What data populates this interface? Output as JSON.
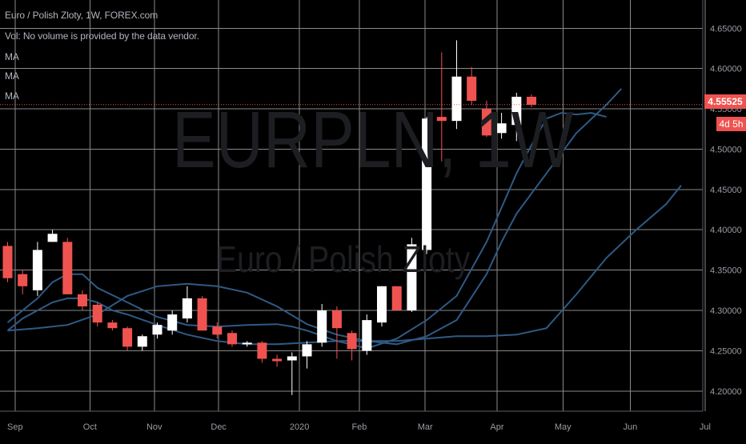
{
  "legend": {
    "title": "Euro / Polish Zloty, 1W, FOREX.com",
    "volume": "Vol: No volume is provided by the data vendor.",
    "ma_labels": [
      "MA",
      "MA",
      "MA"
    ]
  },
  "watermark": {
    "symbol": "EURPLN, 1W",
    "description": "Euro / Polish Zloty"
  },
  "last_price": {
    "value": "4.55525",
    "countdown": "4d 5h"
  },
  "colors": {
    "background": "#000000",
    "grid": "#8a8a8a",
    "up": "#ffffff",
    "down": "#ef5350",
    "ma": "#2f5a85",
    "axis_text": "#9a9ca3",
    "price_line": "#ef5350"
  },
  "chart_data": {
    "type": "candlestick",
    "title": "Euro / Polish Zloty, 1W, FOREX.com",
    "ylim": [
      4.175,
      4.685
    ],
    "x_range_weeks": [
      0,
      49
    ],
    "grid": true,
    "y_ticks": [
      4.2,
      4.25,
      4.3,
      4.35,
      4.4,
      4.45,
      4.5,
      4.55,
      4.6,
      4.65
    ],
    "y_tick_labels": [
      "4.20000",
      "4.25000",
      "4.30000",
      "4.35000",
      "4.40000",
      "4.45000",
      "4.50000",
      "4.55000",
      "4.60000",
      "4.65000"
    ],
    "x_ticks": [
      {
        "label": "Sep",
        "week": 0.5
      },
      {
        "label": "Oct",
        "week": 5.5
      },
      {
        "label": "Nov",
        "week": 9.8
      },
      {
        "label": "Dec",
        "week": 14.1
      },
      {
        "label": "2020",
        "week": 19.5
      },
      {
        "label": "Feb",
        "week": 23.5
      },
      {
        "label": "Mar",
        "week": 27.9
      },
      {
        "label": "Apr",
        "week": 32.7
      },
      {
        "label": "May",
        "week": 37.1
      },
      {
        "label": "Jun",
        "week": 41.6
      },
      {
        "label": "Jul",
        "week": 46.6
      }
    ],
    "candles": [
      {
        "o": 4.38,
        "h": 4.385,
        "l": 4.335,
        "c": 4.34
      },
      {
        "o": 4.345,
        "h": 4.35,
        "l": 4.32,
        "c": 4.33
      },
      {
        "o": 4.325,
        "h": 4.385,
        "l": 4.318,
        "c": 4.375
      },
      {
        "o": 4.385,
        "h": 4.4,
        "l": 4.385,
        "c": 4.395
      },
      {
        "o": 4.385,
        "h": 4.39,
        "l": 4.32,
        "c": 4.32
      },
      {
        "o": 4.32,
        "h": 4.325,
        "l": 4.3,
        "c": 4.305
      },
      {
        "o": 4.307,
        "h": 4.31,
        "l": 4.28,
        "c": 4.285
      },
      {
        "o": 4.285,
        "h": 4.288,
        "l": 4.275,
        "c": 4.278
      },
      {
        "o": 4.278,
        "h": 4.28,
        "l": 4.25,
        "c": 4.255
      },
      {
        "o": 4.255,
        "h": 4.27,
        "l": 4.25,
        "c": 4.268
      },
      {
        "o": 4.27,
        "h": 4.285,
        "l": 4.265,
        "c": 4.282
      },
      {
        "o": 4.275,
        "h": 4.3,
        "l": 4.27,
        "c": 4.295
      },
      {
        "o": 4.29,
        "h": 4.33,
        "l": 4.285,
        "c": 4.315
      },
      {
        "o": 4.315,
        "h": 4.318,
        "l": 4.275,
        "c": 4.275
      },
      {
        "o": 4.28,
        "h": 4.285,
        "l": 4.265,
        "c": 4.27
      },
      {
        "o": 4.272,
        "h": 4.275,
        "l": 4.255,
        "c": 4.258
      },
      {
        "o": 4.258,
        "h": 4.262,
        "l": 4.255,
        "c": 4.26
      },
      {
        "o": 4.26,
        "h": 4.262,
        "l": 4.235,
        "c": 4.24
      },
      {
        "o": 4.24,
        "h": 4.245,
        "l": 4.23,
        "c": 4.237
      },
      {
        "o": 4.238,
        "h": 4.248,
        "l": 4.195,
        "c": 4.243
      },
      {
        "o": 4.243,
        "h": 4.262,
        "l": 4.228,
        "c": 4.258
      },
      {
        "o": 4.26,
        "h": 4.308,
        "l": 4.255,
        "c": 4.3
      },
      {
        "o": 4.3,
        "h": 4.305,
        "l": 4.24,
        "c": 4.278
      },
      {
        "o": 4.272,
        "h": 4.275,
        "l": 4.238,
        "c": 4.252
      },
      {
        "o": 4.25,
        "h": 4.295,
        "l": 4.245,
        "c": 4.288
      },
      {
        "o": 4.285,
        "h": 4.33,
        "l": 4.28,
        "c": 4.33
      },
      {
        "o": 4.33,
        "h": 4.33,
        "l": 4.3,
        "c": 4.3
      },
      {
        "o": 4.3,
        "h": 4.39,
        "l": 4.298,
        "c": 4.382
      },
      {
        "o": 4.375,
        "h": 4.54,
        "l": 4.37,
        "c": 4.538
      },
      {
        "o": 4.54,
        "h": 4.62,
        "l": 4.485,
        "c": 4.535
      },
      {
        "o": 4.535,
        "h": 4.635,
        "l": 4.525,
        "c": 4.59
      },
      {
        "o": 4.59,
        "h": 4.602,
        "l": 4.555,
        "c": 4.56
      },
      {
        "o": 4.55,
        "h": 4.56,
        "l": 4.515,
        "c": 4.517
      },
      {
        "o": 4.52,
        "h": 4.545,
        "l": 4.513,
        "c": 4.532
      },
      {
        "o": 4.53,
        "h": 4.57,
        "l": 4.51,
        "c": 4.565
      },
      {
        "o": 4.565,
        "h": 4.568,
        "l": 4.552,
        "c": 4.555
      }
    ],
    "series": [
      {
        "kind": "ma",
        "points": [
          [
            0,
            4.275
          ],
          [
            2,
            4.278
          ],
          [
            4,
            4.282
          ],
          [
            6,
            4.295
          ],
          [
            8,
            4.318
          ],
          [
            10,
            4.33
          ],
          [
            12,
            4.333
          ],
          [
            14,
            4.33
          ],
          [
            16,
            4.322
          ],
          [
            18,
            4.305
          ],
          [
            20,
            4.283
          ],
          [
            22,
            4.27
          ],
          [
            24,
            4.262
          ],
          [
            26,
            4.258
          ],
          [
            28,
            4.268
          ],
          [
            30,
            4.288
          ],
          [
            32,
            4.345
          ],
          [
            33,
            4.385
          ],
          [
            34,
            4.42
          ],
          [
            36,
            4.47
          ],
          [
            38,
            4.52
          ],
          [
            40,
            4.555
          ],
          [
            41,
            4.575
          ]
        ]
      },
      {
        "kind": "ma",
        "points": [
          [
            0,
            4.285
          ],
          [
            2,
            4.315
          ],
          [
            3,
            4.335
          ],
          [
            4,
            4.345
          ],
          [
            5,
            4.345
          ],
          [
            6,
            4.328
          ],
          [
            8,
            4.31
          ],
          [
            10,
            4.292
          ],
          [
            12,
            4.282
          ],
          [
            14,
            4.28
          ],
          [
            16,
            4.282
          ],
          [
            18,
            4.283
          ],
          [
            19,
            4.28
          ],
          [
            20,
            4.275
          ],
          [
            22,
            4.262
          ],
          [
            24,
            4.253
          ],
          [
            26,
            4.265
          ],
          [
            28,
            4.288
          ],
          [
            30,
            4.318
          ],
          [
            32,
            4.385
          ],
          [
            34,
            4.47
          ],
          [
            35,
            4.505
          ],
          [
            36,
            4.538
          ],
          [
            37,
            4.545
          ],
          [
            38,
            4.543
          ],
          [
            39,
            4.545
          ],
          [
            40,
            4.54
          ]
        ]
      },
      {
        "kind": "ma",
        "points": [
          [
            0,
            4.275
          ],
          [
            1,
            4.29
          ],
          [
            2,
            4.3
          ],
          [
            3,
            4.31
          ],
          [
            4,
            4.315
          ],
          [
            5,
            4.315
          ],
          [
            6,
            4.31
          ],
          [
            7,
            4.3
          ],
          [
            8,
            4.295
          ],
          [
            10,
            4.282
          ],
          [
            12,
            4.27
          ],
          [
            14,
            4.262
          ],
          [
            16,
            4.258
          ],
          [
            18,
            4.258
          ],
          [
            20,
            4.26
          ],
          [
            22,
            4.262
          ],
          [
            24,
            4.262
          ],
          [
            26,
            4.262
          ],
          [
            28,
            4.265
          ],
          [
            30,
            4.268
          ],
          [
            32,
            4.268
          ],
          [
            34,
            4.27
          ],
          [
            36,
            4.278
          ],
          [
            38,
            4.32
          ],
          [
            40,
            4.365
          ],
          [
            42,
            4.4
          ],
          [
            44,
            4.432
          ],
          [
            45,
            4.455
          ]
        ]
      }
    ],
    "last_price": 4.55525
  }
}
